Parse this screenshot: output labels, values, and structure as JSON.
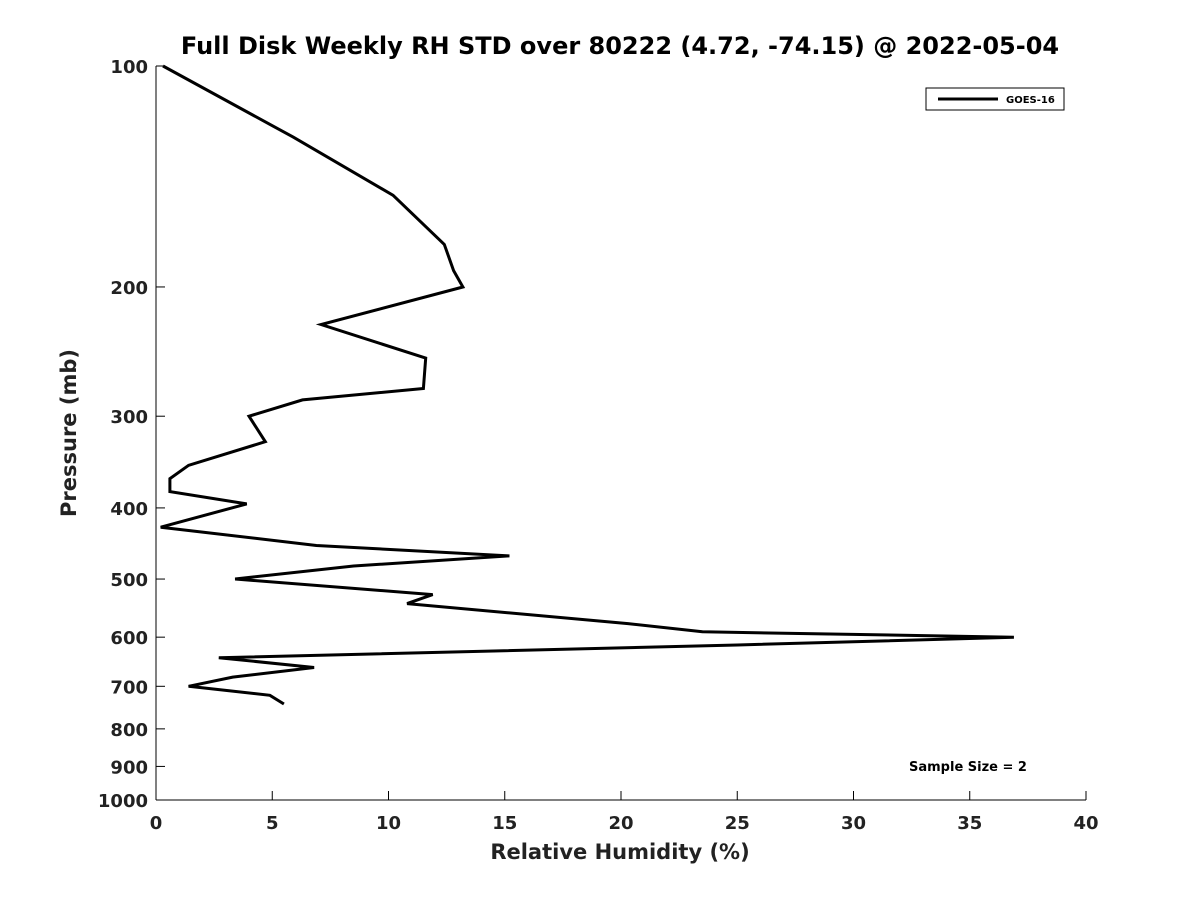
{
  "chart_data": {
    "type": "line",
    "title": "Full Disk Weekly RH STD over 80222 (4.72, -74.15) @ 2022-05-04",
    "xlabel": "Relative Humidity (%)",
    "ylabel": "Pressure (mb)",
    "xlim": [
      0,
      40
    ],
    "ylim": [
      100,
      1000
    ],
    "y_scale": "log",
    "y_inverted": true,
    "x_ticks": [
      0,
      5,
      10,
      15,
      20,
      25,
      30,
      35,
      40
    ],
    "y_ticks": [
      100,
      200,
      300,
      400,
      500,
      600,
      700,
      800,
      900,
      1000
    ],
    "grid": false,
    "legend_position": "top-right",
    "series": [
      {
        "name": "GOES-16",
        "color": "#000000",
        "x": [
          0.3,
          5.9,
          10.2,
          12.4,
          12.8,
          13.2,
          7.1,
          11.6,
          11.5,
          6.3,
          4.0,
          4.7,
          1.4,
          0.6,
          0.6,
          3.9,
          0.2,
          6.9,
          15.2,
          8.5,
          3.4,
          11.9,
          10.8,
          20.3,
          23.5,
          36.9,
          25.0,
          2.7,
          6.8,
          3.3,
          1.4,
          4.9,
          5.5
        ],
        "pressure": [
          100,
          125,
          150,
          175,
          190,
          200,
          225,
          250,
          275,
          285,
          300,
          325,
          350,
          365,
          380,
          395,
          425,
          450,
          465,
          480,
          500,
          525,
          540,
          575,
          590,
          600,
          615,
          640,
          660,
          680,
          700,
          720,
          740
        ]
      }
    ],
    "annotations": {
      "sample_size": "Sample Size = 2"
    }
  }
}
